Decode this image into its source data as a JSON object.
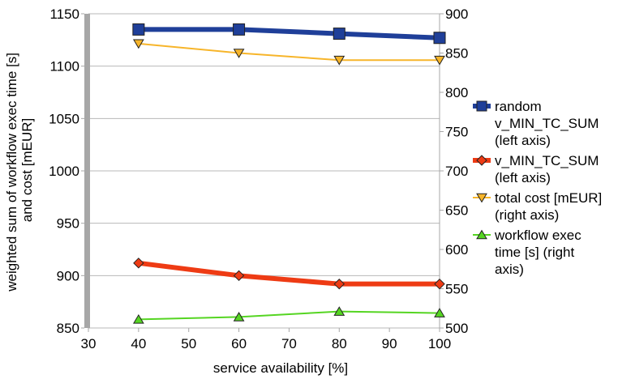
{
  "chart_data": {
    "type": "line",
    "xlabel": "service availability [%]",
    "ylabel_lines": [
      "weighted sum of workflow exec time [s]",
      "and cost [mEUR]"
    ],
    "xlim": [
      30,
      100
    ],
    "ylim_left": [
      850,
      1150
    ],
    "ylim_right": [
      500,
      900
    ],
    "x_ticks": [
      30,
      40,
      50,
      60,
      70,
      80,
      90,
      100
    ],
    "y_left_ticks": [
      850,
      900,
      950,
      1000,
      1050,
      1100,
      1150
    ],
    "y_right_ticks": [
      500,
      550,
      600,
      650,
      700,
      750,
      800,
      850,
      900
    ],
    "grid": "horizontal",
    "legend_position": "right",
    "series": [
      {
        "key": "random",
        "legend_lines": [
          "random",
          "v_MIN_TC_SUM",
          "(left axis)"
        ],
        "axis": "left",
        "color": "#1f3f99",
        "marker": "square",
        "x": [
          40,
          60,
          80,
          100
        ],
        "y": [
          1135,
          1135,
          1131,
          1127
        ]
      },
      {
        "key": "vmin",
        "legend_lines": [
          "v_MIN_TC_SUM",
          "(left axis)"
        ],
        "axis": "left",
        "color": "#ee3b14",
        "marker": "diamond",
        "x": [
          40,
          60,
          80,
          100
        ],
        "y": [
          912,
          900,
          892,
          892
        ]
      },
      {
        "key": "cost",
        "legend_lines": [
          "total cost [mEUR]",
          "(right axis)"
        ],
        "axis": "right",
        "color": "#f7b52a",
        "marker": "triangle-down",
        "x": [
          40,
          60,
          80,
          100
        ],
        "y": [
          862,
          850,
          841,
          841
        ]
      },
      {
        "key": "time",
        "legend_lines": [
          "workflow exec",
          "time [s] (right",
          "axis)"
        ],
        "axis": "right",
        "color": "#55d522",
        "marker": "triangle-up",
        "x": [
          40,
          60,
          80,
          100
        ],
        "y": [
          511,
          514,
          521,
          519
        ]
      }
    ]
  }
}
